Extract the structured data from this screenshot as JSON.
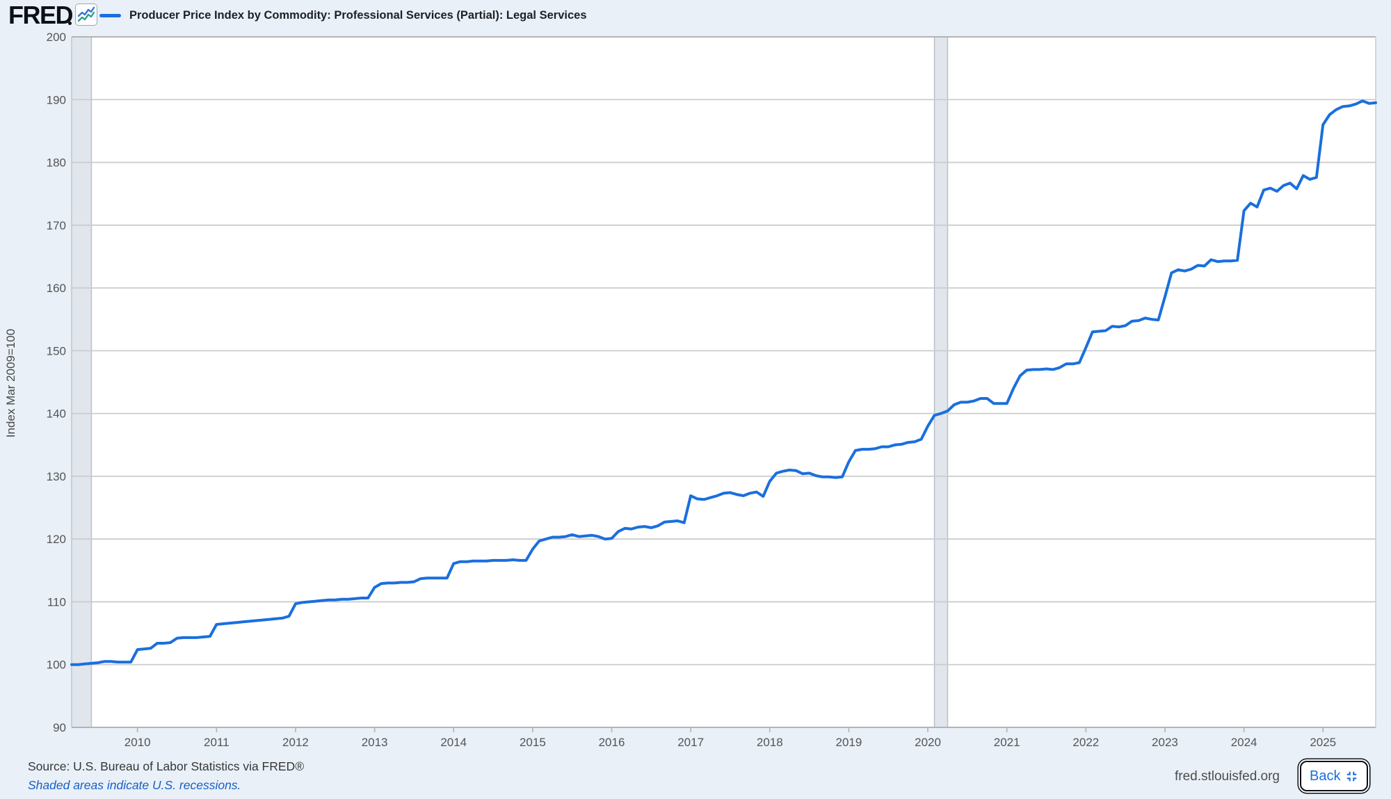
{
  "header": {
    "logo_text": "FRED",
    "logo_icon": "fred-sparkline-icon",
    "legend_color": "#1a6fdd"
  },
  "chart_data": {
    "type": "line",
    "title": "Producer Price Index by Commodity: Professional Services (Partial): Legal Services",
    "ylabel": "Index Mar 2009=100",
    "xlabel": "",
    "line_color": "#1a6fdd",
    "grid": true,
    "ylim": [
      90,
      200
    ],
    "y_ticks": [
      90,
      100,
      110,
      120,
      130,
      140,
      150,
      160,
      170,
      180,
      190,
      200
    ],
    "x_range_years": [
      2009.1667,
      2025.6667
    ],
    "x_ticks": [
      2010,
      2011,
      2012,
      2013,
      2014,
      2015,
      2016,
      2017,
      2018,
      2019,
      2020,
      2021,
      2022,
      2023,
      2024,
      2025
    ],
    "start_year": 2009,
    "start_month": 3,
    "frequency": "monthly",
    "values": [
      100.0,
      100.0,
      100.1,
      100.2,
      100.3,
      100.5,
      100.5,
      100.4,
      100.4,
      100.4,
      102.4,
      102.5,
      102.6,
      103.4,
      103.4,
      103.5,
      104.2,
      104.3,
      104.3,
      104.3,
      104.4,
      104.5,
      106.4,
      106.5,
      106.6,
      106.7,
      106.8,
      106.9,
      107.0,
      107.1,
      107.2,
      107.3,
      107.4,
      107.7,
      109.7,
      109.9,
      110.0,
      110.1,
      110.2,
      110.3,
      110.3,
      110.4,
      110.4,
      110.5,
      110.6,
      110.6,
      112.3,
      112.9,
      113.0,
      113.0,
      113.1,
      113.1,
      113.2,
      113.7,
      113.8,
      113.8,
      113.8,
      113.8,
      116.1,
      116.4,
      116.4,
      116.5,
      116.5,
      116.5,
      116.6,
      116.6,
      116.6,
      116.7,
      116.6,
      116.6,
      118.4,
      119.7,
      120.0,
      120.3,
      120.3,
      120.4,
      120.7,
      120.4,
      120.5,
      120.6,
      120.4,
      120.0,
      120.1,
      121.2,
      121.7,
      121.6,
      121.9,
      122.0,
      121.8,
      122.1,
      122.7,
      122.8,
      122.9,
      122.6,
      126.9,
      126.4,
      126.3,
      126.6,
      126.9,
      127.3,
      127.4,
      127.1,
      126.9,
      127.3,
      127.5,
      126.8,
      129.2,
      130.5,
      130.8,
      131.0,
      130.9,
      130.4,
      130.5,
      130.1,
      129.9,
      129.9,
      129.8,
      129.9,
      132.3,
      134.1,
      134.3,
      134.3,
      134.4,
      134.7,
      134.7,
      135.0,
      135.1,
      135.4,
      135.5,
      135.9,
      138.0,
      139.7,
      140.0,
      140.4,
      141.4,
      141.8,
      141.8,
      142.0,
      142.4,
      142.4,
      141.6,
      141.6,
      141.6,
      144.0,
      146.0,
      146.9,
      147.0,
      147.0,
      147.1,
      147.0,
      147.3,
      147.9,
      147.9,
      148.1,
      150.5,
      153.0,
      153.1,
      153.2,
      153.9,
      153.8,
      154.0,
      154.7,
      154.8,
      155.2,
      155.0,
      154.9,
      158.6,
      162.4,
      162.9,
      162.7,
      163.0,
      163.6,
      163.5,
      164.5,
      164.2,
      164.3,
      164.3,
      164.4,
      172.3,
      173.5,
      172.9,
      175.6,
      175.9,
      175.4,
      176.3,
      176.7,
      175.8,
      177.9,
      177.3,
      177.6,
      186.0,
      187.6,
      188.4,
      188.9,
      189.0,
      189.3,
      189.8,
      189.4,
      189.5
    ],
    "recessions": [
      {
        "start": 2009.1667,
        "end": 2009.4167
      },
      {
        "start": 2020.0833,
        "end": 2020.25
      }
    ],
    "legend_position": "top-left",
    "plot_colors": {
      "background": "#ffffff",
      "gridline": "#cccccc",
      "border": "#b3b3b3",
      "recession_fill": "#e1e6ec",
      "recession_edge": "#b9c0ca",
      "tick_label": "#545454"
    }
  },
  "footer": {
    "source": "Source: U.S. Bureau of Labor Statistics via FRED®",
    "recession_note": "Shaded areas indicate U.S. recessions.",
    "site": "fred.stlouisfed.org",
    "back_label": "Back"
  }
}
